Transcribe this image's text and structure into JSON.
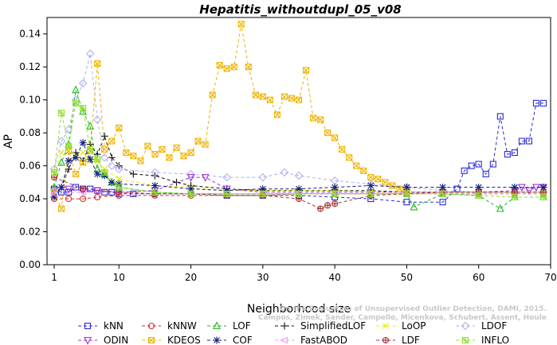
{
  "chart_data": {
    "type": "line",
    "title": "Hepatitis_withoutdupl_05_v08",
    "xlabel": "Neighborhood size",
    "ylabel": "AP",
    "xlim": [
      0,
      70
    ],
    "ylim": [
      0,
      0.15
    ],
    "xticks": [
      1,
      10,
      20,
      30,
      40,
      50,
      60,
      70
    ],
    "yticks": [
      0.0,
      0.02,
      0.04,
      0.06,
      0.08,
      0.1,
      0.12,
      0.14
    ],
    "ytick_labels": [
      "0.00",
      "0.02",
      "0.04",
      "0.06",
      "0.08",
      "0.10",
      "0.12",
      "0.14"
    ],
    "xtick_labels": [
      "1",
      "10",
      "20",
      "30",
      "40",
      "50",
      "60",
      "70"
    ],
    "grid": false,
    "legend_position": "bottom",
    "watermark": "Campos, Zimek, Sander, Campello, Micenkova, Schubert, Assent, Houle: On the Evaluation of Unsupervised Outlier Detection, DAMI, 2015.",
    "watermark_line1": "On the Evaluation of Unsupervised Outlier Detection, DAMI, 2015.",
    "watermark_line2": "Campos, Zimek, Sander, Campello, Micenkova, Schubert, Assent, Houle",
    "series": [
      {
        "name": "kNN",
        "color": "#2a2ad4",
        "marker": "square",
        "x": [
          1,
          2,
          3,
          4,
          5,
          6,
          7,
          8,
          9,
          10,
          12,
          15,
          20,
          25,
          30,
          35,
          40,
          45,
          50,
          55,
          57,
          58,
          59,
          60,
          61,
          62,
          63,
          64,
          65,
          66,
          67,
          68,
          69
        ],
        "y": [
          0.046,
          0.044,
          0.044,
          0.047,
          0.046,
          0.046,
          0.045,
          0.044,
          0.044,
          0.043,
          0.043,
          0.043,
          0.043,
          0.042,
          0.042,
          0.042,
          0.041,
          0.04,
          0.038,
          0.038,
          0.046,
          0.057,
          0.06,
          0.061,
          0.055,
          0.061,
          0.09,
          0.067,
          0.068,
          0.075,
          0.075,
          0.098,
          0.098
        ]
      },
      {
        "name": "kNNW",
        "color": "#d42a2a",
        "marker": "circle",
        "x": [
          1,
          3,
          5,
          7,
          10,
          15,
          20,
          25,
          30,
          35,
          40,
          45,
          50,
          55,
          60,
          65,
          69
        ],
        "y": [
          0.04,
          0.04,
          0.04,
          0.041,
          0.042,
          0.042,
          0.042,
          0.042,
          0.042,
          0.043,
          0.043,
          0.043,
          0.043,
          0.043,
          0.043,
          0.043,
          0.043
        ]
      },
      {
        "name": "LOF",
        "color": "#22b822",
        "marker": "triangle-up",
        "x": [
          1,
          2,
          3,
          4,
          5,
          6,
          7,
          8,
          9,
          10,
          15,
          20,
          25,
          30,
          35,
          40,
          45,
          50,
          51,
          55,
          60,
          63,
          65,
          69
        ],
        "y": [
          0.047,
          0.062,
          0.073,
          0.106,
          0.093,
          0.084,
          0.058,
          0.055,
          0.05,
          0.047,
          0.044,
          0.043,
          0.043,
          0.043,
          0.043,
          0.043,
          0.043,
          0.043,
          0.035,
          0.043,
          0.042,
          0.034,
          0.041,
          0.041
        ]
      },
      {
        "name": "SimplifiedLOF",
        "color": "#111111",
        "marker": "plus",
        "x": [
          1,
          2,
          3,
          4,
          5,
          6,
          7,
          8,
          9,
          10,
          12,
          15,
          18,
          20,
          25,
          30,
          35,
          40,
          45,
          50,
          55,
          60,
          65,
          69
        ],
        "y": [
          0.041,
          0.047,
          0.058,
          0.068,
          0.063,
          0.073,
          0.067,
          0.078,
          0.065,
          0.06,
          0.055,
          0.054,
          0.05,
          0.048,
          0.046,
          0.045,
          0.045,
          0.045,
          0.045,
          0.044,
          0.044,
          0.044,
          0.044,
          0.044
        ]
      },
      {
        "name": "LoOP",
        "color": "#e8e800",
        "marker": "x",
        "x": [
          1,
          2,
          3,
          4,
          5,
          6,
          7,
          8,
          10,
          15,
          20,
          25,
          30,
          35,
          40,
          45,
          50,
          55,
          60,
          65,
          69
        ],
        "y": [
          0.055,
          0.068,
          0.072,
          0.066,
          0.068,
          0.063,
          0.063,
          0.058,
          0.052,
          0.048,
          0.047,
          0.045,
          0.045,
          0.045,
          0.045,
          0.044,
          0.044,
          0.044,
          0.044,
          0.044,
          0.044
        ]
      },
      {
        "name": "LDOF",
        "color": "#b0b0f0",
        "marker": "diamond",
        "x": [
          1,
          2,
          3,
          4,
          5,
          6,
          7,
          8,
          9,
          10,
          15,
          20,
          25,
          30,
          33,
          35,
          40,
          45,
          50,
          55,
          60,
          65,
          69
        ],
        "y": [
          0.058,
          0.075,
          0.082,
          0.1,
          0.11,
          0.128,
          0.088,
          0.065,
          0.06,
          0.058,
          0.056,
          0.055,
          0.053,
          0.053,
          0.056,
          0.054,
          0.051,
          0.049,
          0.047,
          0.045,
          0.044,
          0.044,
          0.044
        ]
      },
      {
        "name": "ODIN",
        "color": "#9b30d8",
        "marker": "triangle-down",
        "x": [
          1,
          3,
          5,
          7,
          10,
          15,
          20,
          22,
          25,
          30,
          35,
          40,
          45,
          50,
          55,
          60,
          65,
          66,
          67,
          68,
          69
        ],
        "y": [
          0.045,
          0.046,
          0.045,
          0.045,
          0.044,
          0.045,
          0.053,
          0.053,
          0.046,
          0.044,
          0.044,
          0.044,
          0.044,
          0.044,
          0.044,
          0.044,
          0.045,
          0.047,
          0.045,
          0.047,
          0.047
        ]
      },
      {
        "name": "KDEOS",
        "color": "#f0b400",
        "marker": "square-x",
        "x": [
          1,
          2,
          3,
          4,
          5,
          6,
          7,
          8,
          9,
          10,
          11,
          12,
          13,
          14,
          15,
          16,
          17,
          18,
          19,
          20,
          21,
          22,
          23,
          24,
          25,
          26,
          27,
          28,
          29,
          30,
          31,
          32,
          33,
          34,
          35,
          36,
          37,
          38,
          39,
          40,
          41,
          42,
          43,
          44,
          45,
          46,
          47,
          48,
          49,
          50
        ],
        "y": [
          0.044,
          0.034,
          0.069,
          0.055,
          0.062,
          0.069,
          0.122,
          0.07,
          0.075,
          0.083,
          0.068,
          0.066,
          0.063,
          0.072,
          0.067,
          0.07,
          0.065,
          0.071,
          0.066,
          0.068,
          0.075,
          0.073,
          0.103,
          0.121,
          0.119,
          0.12,
          0.146,
          0.12,
          0.103,
          0.102,
          0.1,
          0.091,
          0.102,
          0.101,
          0.1,
          0.118,
          0.089,
          0.088,
          0.08,
          0.077,
          0.07,
          0.065,
          0.06,
          0.057,
          0.053,
          0.052,
          0.05,
          0.048,
          0.046,
          0.045
        ]
      },
      {
        "name": "COF",
        "color": "#102080",
        "marker": "asterisk",
        "x": [
          1,
          2,
          3,
          4,
          5,
          6,
          7,
          8,
          9,
          10,
          15,
          20,
          25,
          30,
          35,
          40,
          45,
          50,
          55,
          60,
          65,
          69
        ],
        "y": [
          0.041,
          0.047,
          0.063,
          0.065,
          0.074,
          0.064,
          0.055,
          0.054,
          0.05,
          0.049,
          0.048,
          0.046,
          0.045,
          0.046,
          0.046,
          0.047,
          0.048,
          0.047,
          0.047,
          0.047,
          0.047,
          0.047
        ]
      },
      {
        "name": "FastABOD",
        "color": "#f0a0f0",
        "marker": "triangle-left",
        "x": [
          1,
          5,
          10,
          15,
          20,
          25,
          30,
          35,
          40,
          45,
          50,
          55,
          60,
          65,
          69
        ],
        "y": [
          0.043,
          0.044,
          0.044,
          0.043,
          0.043,
          0.043,
          0.043,
          0.043,
          0.043,
          0.043,
          0.043,
          0.043,
          0.043,
          0.043,
          0.043
        ]
      },
      {
        "name": "LDF",
        "color": "#a83030",
        "marker": "circle-plus",
        "x": [
          1,
          5,
          10,
          15,
          20,
          25,
          30,
          35,
          38,
          39,
          40,
          45,
          50,
          55,
          60,
          65,
          69
        ],
        "y": [
          0.053,
          0.046,
          0.044,
          0.043,
          0.043,
          0.042,
          0.042,
          0.04,
          0.034,
          0.036,
          0.037,
          0.042,
          0.043,
          0.044,
          0.044,
          0.044,
          0.044
        ]
      },
      {
        "name": "INFLO",
        "color": "#90e030",
        "marker": "square-star",
        "x": [
          1,
          2,
          3,
          4,
          5,
          6,
          7,
          8,
          10,
          15,
          20,
          25,
          30,
          35,
          40,
          45,
          50,
          55,
          60,
          65,
          69
        ],
        "y": [
          0.056,
          0.092,
          0.072,
          0.098,
          0.095,
          0.07,
          0.064,
          0.056,
          0.047,
          0.044,
          0.043,
          0.043,
          0.043,
          0.043,
          0.043,
          0.043,
          0.043,
          0.043,
          0.042,
          0.041,
          0.041
        ]
      }
    ]
  }
}
